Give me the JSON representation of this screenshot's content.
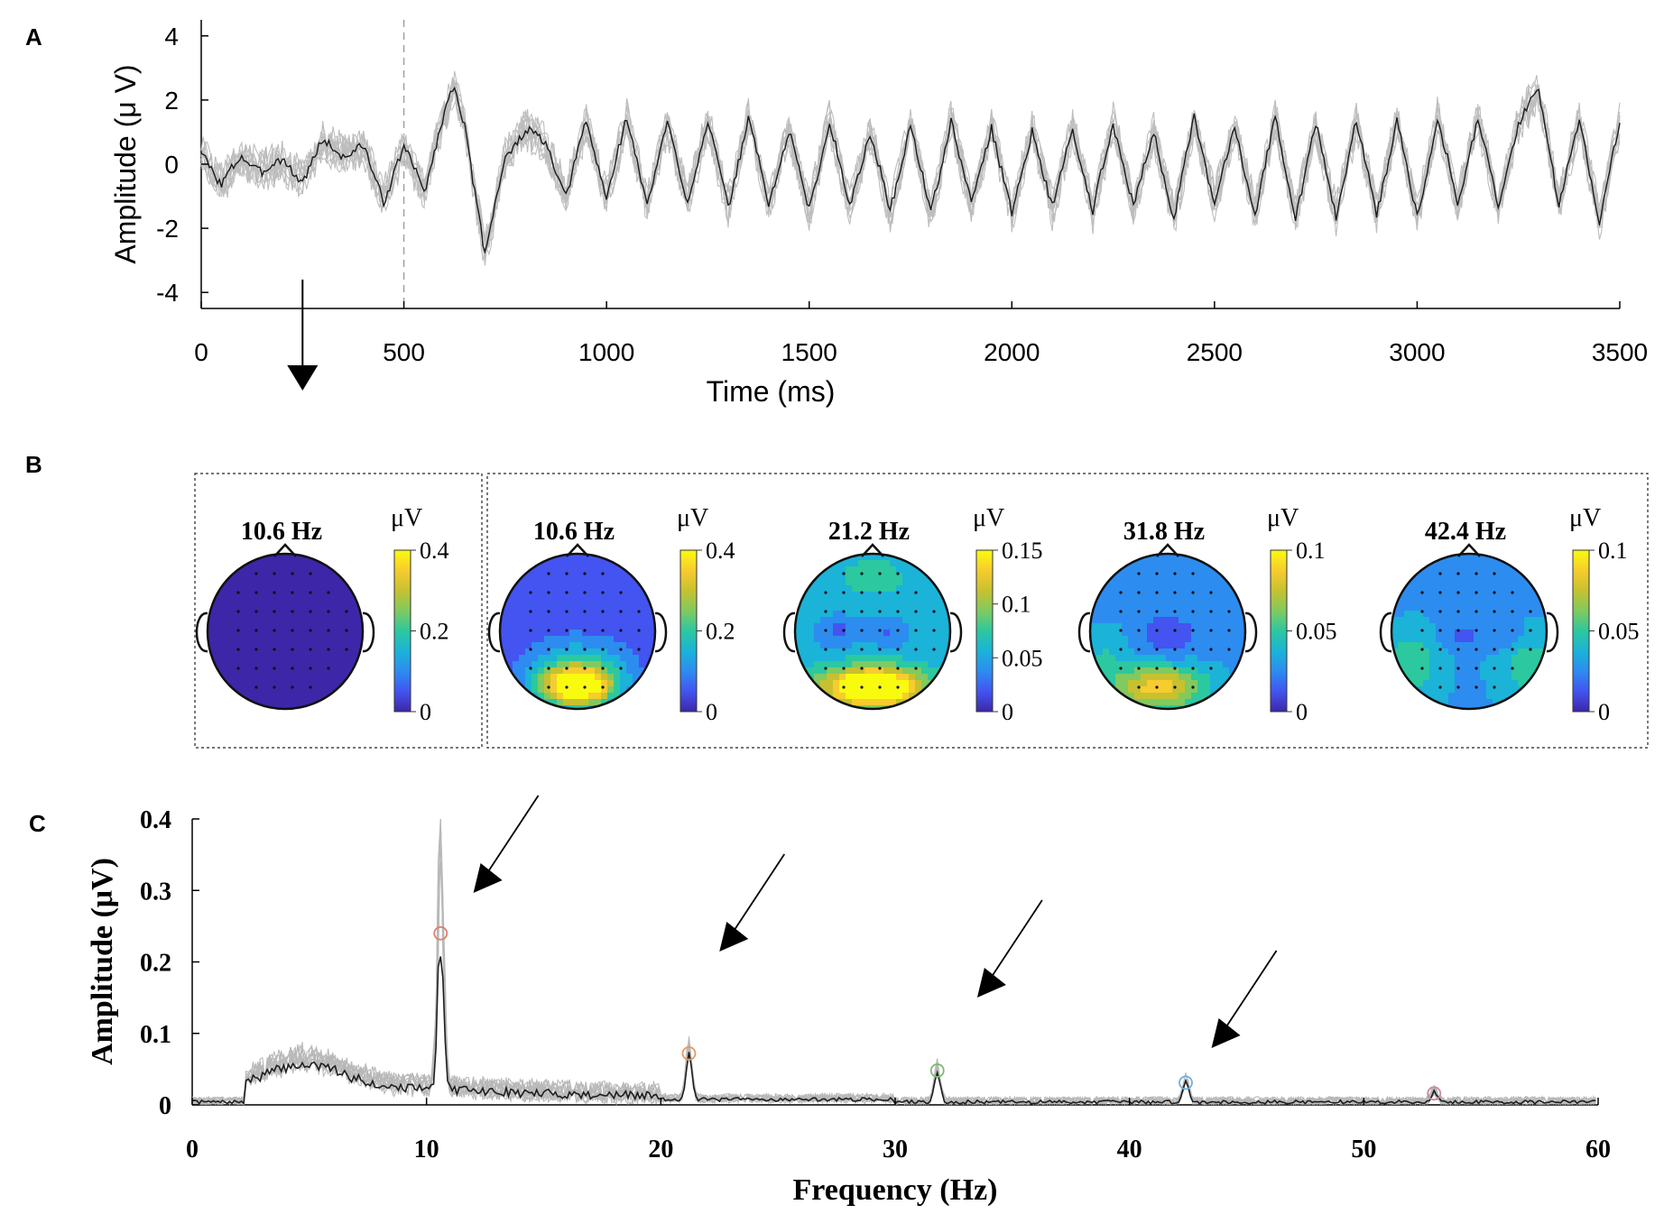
{
  "chart_data": [
    {
      "panel": "A",
      "type": "line",
      "xlabel": "Time (ms)",
      "ylabel": "Amplitude (μ V)",
      "xlim": [
        0,
        3500
      ],
      "ylim": [
        -4.5,
        4.5
      ],
      "x_ticks": [
        0,
        500,
        1000,
        1500,
        2000,
        2500,
        3000,
        3500
      ],
      "x_tick_labels": [
        "0",
        "500",
        "1000",
        "1500",
        "2000",
        "2500",
        "3000",
        "3500"
      ],
      "y_ticks": [
        4,
        2,
        0,
        -2,
        -4
      ],
      "y_tick_labels": [
        "4",
        "2",
        "0",
        "-2",
        "-4"
      ],
      "grid": false,
      "vline_ms": 500,
      "arrow_ms": 250,
      "mean_trace": {
        "x": [
          0,
          50,
          100,
          150,
          200,
          250,
          300,
          350,
          400,
          450,
          500,
          550,
          600,
          625,
          650,
          700,
          750,
          800,
          850,
          900,
          950,
          1000,
          1050,
          1100,
          1150,
          1200,
          1250,
          1300,
          1350,
          1400,
          1450,
          1500,
          1550,
          1600,
          1650,
          1700,
          1750,
          1800,
          1850,
          1900,
          1950,
          2000,
          2050,
          2100,
          2150,
          2200,
          2250,
          2300,
          2350,
          2400,
          2450,
          2500,
          2550,
          2600,
          2650,
          2700,
          2750,
          2800,
          2850,
          2900,
          2950,
          3000,
          3050,
          3100,
          3150,
          3200,
          3250,
          3300,
          3350,
          3400,
          3450,
          3500
        ],
        "y": [
          0.4,
          -0.6,
          0.2,
          -0.2,
          0.1,
          -0.5,
          0.7,
          0.3,
          0.5,
          -1.1,
          0.5,
          -0.8,
          1.6,
          2.4,
          1.2,
          -2.8,
          0.2,
          1.1,
          0.6,
          -1.0,
          1.3,
          -1.0,
          1.4,
          -1.2,
          1.2,
          -1.1,
          1.3,
          -1.3,
          1.4,
          -1.2,
          1.0,
          -1.4,
          1.3,
          -1.3,
          1.0,
          -1.5,
          1.3,
          -1.6,
          1.4,
          -1.3,
          1.2,
          -1.6,
          1.1,
          -1.4,
          1.1,
          -1.5,
          1.3,
          -1.3,
          1.0,
          -1.7,
          1.4,
          -1.2,
          1.1,
          -1.5,
          1.4,
          -1.6,
          1.2,
          -1.6,
          1.3,
          -1.5,
          1.3,
          -1.6,
          1.4,
          -1.2,
          1.5,
          -1.4,
          1.3,
          2.3,
          -1.2,
          1.3,
          -1.7,
          1.3
        ]
      },
      "trace_count": 10
    },
    {
      "panel": "B",
      "type": "heatmap",
      "description_labels": {
        "unit": "μV"
      },
      "maps": [
        {
          "title": "10.6 Hz",
          "color_ticks": [
            "0.4",
            "0.2",
            "0"
          ],
          "hotspot": "none"
        },
        {
          "title": "10.6 Hz",
          "color_ticks": [
            "0.4",
            "0.2",
            "0"
          ],
          "hotspot": "occipital-strong"
        },
        {
          "title": "21.2 Hz",
          "color_ticks": [
            "0.15",
            "0.1",
            "0.05",
            "0"
          ],
          "hotspot": "occipital-strong-broad"
        },
        {
          "title": "31.8 Hz",
          "color_ticks": [
            "0.1",
            "0.05",
            "0"
          ],
          "hotspot": "occipital-medium"
        },
        {
          "title": "42.4 Hz",
          "color_ticks": [
            "0.1",
            "0.05",
            "0"
          ],
          "hotspot": "diffuse"
        }
      ],
      "colormap": [
        "#3e26a8",
        "#4354f0",
        "#2d8cf0",
        "#1bb3d8",
        "#2cc8a0",
        "#80ca5f",
        "#c7c130",
        "#f7cc2e",
        "#f9fb0e"
      ]
    },
    {
      "panel": "C",
      "type": "line",
      "xlabel": "Frequency (Hz)",
      "ylabel": "Amplitude (μV)",
      "xlim": [
        0,
        60
      ],
      "ylim": [
        0,
        0.4
      ],
      "x_ticks": [
        0,
        10,
        20,
        30,
        40,
        50,
        60
      ],
      "x_tick_labels": [
        "0",
        "10",
        "20",
        "30",
        "40",
        "50",
        "60"
      ],
      "y_ticks": [
        0,
        0.1,
        0.2,
        0.3,
        0.4
      ],
      "y_tick_labels": [
        "0",
        "0.1",
        "0.2",
        "0.3",
        "0.4"
      ],
      "grid": false,
      "trace_count": 10,
      "peaks": [
        {
          "freq": 10.6,
          "amp": 0.24,
          "color": "#e0806a"
        },
        {
          "freq": 21.2,
          "amp": 0.072,
          "color": "#e49a63"
        },
        {
          "freq": 31.8,
          "amp": 0.048,
          "color": "#7cbd6a"
        },
        {
          "freq": 42.4,
          "amp": 0.031,
          "color": "#6fb1e0"
        },
        {
          "freq": 53.0,
          "amp": 0.016,
          "color": "#c98a9e"
        }
      ],
      "arrow_freqs": [
        12,
        22.5,
        33.5,
        43.5
      ]
    }
  ],
  "labels": {
    "panel_a": "A",
    "panel_b": "B",
    "panel_c": "C"
  }
}
